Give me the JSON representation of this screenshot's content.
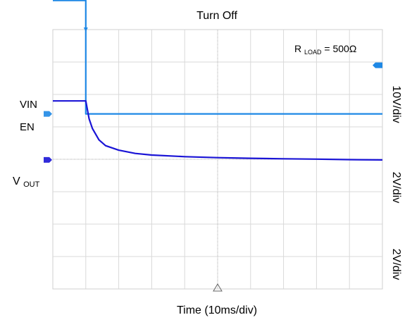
{
  "chart_data": {
    "type": "line",
    "title": "Turn Off",
    "xlabel": "Time (10ms/div)",
    "annotation": {
      "prefix": "R",
      "subscript": "LOAD",
      "suffix": " = 500Ω"
    },
    "grid": true,
    "x_divisions": 10,
    "y_divisions": 8,
    "x_unit": "ms",
    "x_per_div": 10,
    "xlim": [
      0,
      100
    ],
    "trigger_time": 10,
    "scales": [
      "10V/div",
      "2V/div",
      "2V/div"
    ],
    "series": [
      {
        "name": "VIN",
        "color": "#e020d0",
        "x": [
          0,
          100
        ],
        "y": [
          5.4,
          5.4
        ]
      },
      {
        "name": "EN",
        "color": "#1e88e5",
        "x": [
          0,
          10,
          10,
          100
        ],
        "y": [
          4.9,
          4.9,
          1.4,
          1.4
        ]
      },
      {
        "name": "V",
        "subscript": "OUT",
        "color": "#1a14d6",
        "x": [
          0,
          10,
          11,
          12,
          14,
          16,
          20,
          25,
          30,
          40,
          50,
          60,
          70,
          80,
          90,
          100
        ],
        "y": [
          1.8,
          1.8,
          1.25,
          0.95,
          0.6,
          0.42,
          0.28,
          0.18,
          0.13,
          0.08,
          0.05,
          0.03,
          0.015,
          0.005,
          -0.01,
          -0.02
        ]
      }
    ]
  }
}
